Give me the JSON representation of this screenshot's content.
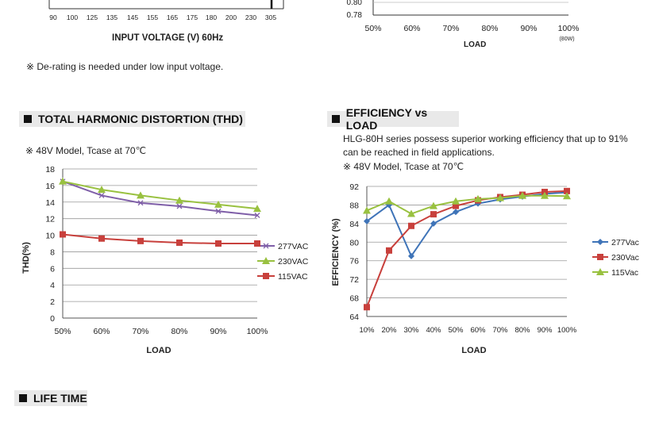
{
  "top_left": {
    "x_ticks": [
      "90",
      "100",
      "125",
      "135",
      "145",
      "155",
      "165",
      "175",
      "180",
      "200",
      "230",
      "305"
    ],
    "xlabel": "INPUT VOLTAGE (V) 60Hz",
    "note": "※ De-rating is needed under low input voltage."
  },
  "top_right": {
    "y_ticks": [
      "0.80",
      "0.78"
    ],
    "x_ticks": [
      "50%",
      "60%",
      "70%",
      "80%",
      "90%",
      "100%"
    ],
    "x_sub": "(80W)",
    "xlabel": "LOAD"
  },
  "thd": {
    "header": "TOTAL HARMONIC DISTORTION (THD)",
    "note": "※ 48V Model, Tcase at 70℃",
    "ylabel": "THD(%)",
    "xlabel": "LOAD"
  },
  "eff": {
    "header": "EFFICIENCY vs LOAD",
    "desc1": "HLG-80H series possess superior working efficiency that up to 91%",
    "desc2": "can be reached in field applications.",
    "note": "※ 48V Model, Tcase at 70℃",
    "ylabel": "EFFICIENCY (%)",
    "xlabel": "LOAD"
  },
  "life": {
    "header": "LIFE TIME"
  },
  "colors": {
    "purple": "#7f5fa8",
    "green": "#99c140",
    "red": "#c8403c",
    "blue": "#3f74b8"
  },
  "chart_data": [
    {
      "type": "line",
      "title": "",
      "xlabel": "LOAD",
      "ylabel": "THD(%)",
      "categories": [
        "50%",
        "60%",
        "70%",
        "80%",
        "90%",
        "100%"
      ],
      "y_ticks": [
        "0",
        "2",
        "4",
        "6",
        "8",
        "10",
        "12",
        "14",
        "16",
        "18"
      ],
      "ylim": [
        0,
        18
      ],
      "grid": true,
      "legend": "right",
      "series": [
        {
          "name": "277VAC",
          "color": "#7f5fa8",
          "marker": "x",
          "values": [
            16.5,
            14.8,
            13.9,
            13.5,
            12.9,
            12.4
          ]
        },
        {
          "name": "230VAC",
          "color": "#99c140",
          "marker": "triangle",
          "values": [
            16.5,
            15.5,
            14.8,
            14.2,
            13.7,
            13.2
          ]
        },
        {
          "name": "115VAC",
          "color": "#c8403c",
          "marker": "square",
          "values": [
            10.1,
            9.6,
            9.3,
            9.1,
            9.0,
            9.0
          ]
        }
      ]
    },
    {
      "type": "line",
      "title": "",
      "xlabel": "LOAD",
      "ylabel": "EFFICIENCY (%)",
      "categories": [
        "10%",
        "20%",
        "30%",
        "40%",
        "50%",
        "60%",
        "70%",
        "80%",
        "90%",
        "100%"
      ],
      "y_ticks": [
        "64",
        "68",
        "72",
        "76",
        "80",
        "84",
        "88",
        "92"
      ],
      "ylim": [
        64,
        92
      ],
      "grid": true,
      "legend": "right",
      "series": [
        {
          "name": "277Vac",
          "color": "#3f74b8",
          "marker": "diamond",
          "values": [
            84.5,
            88,
            77,
            84,
            86.5,
            88.3,
            89.2,
            89.8,
            90.4,
            90.7
          ]
        },
        {
          "name": "230Vac",
          "color": "#c8403c",
          "marker": "square",
          "values": [
            66,
            78.2,
            83.5,
            86,
            87.8,
            89,
            89.7,
            90.2,
            90.8,
            91
          ]
        },
        {
          "name": "115Vac",
          "color": "#99c140",
          "marker": "triangle",
          "values": [
            86.8,
            88.8,
            86.1,
            87.8,
            88.8,
            89.3,
            89.5,
            90,
            90,
            89.9
          ]
        }
      ]
    }
  ]
}
